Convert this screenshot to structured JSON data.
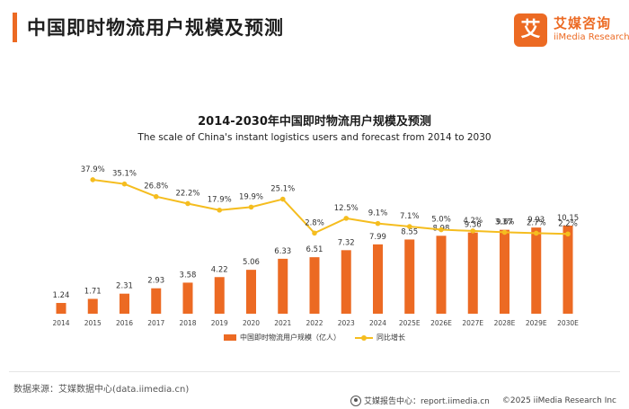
{
  "header": {
    "title": "中国即时物流用户规模及预测",
    "brand_logo_char": "艾",
    "brand_name": "艾媒咨询",
    "brand_sub": "iiMedia Research"
  },
  "chart_data": {
    "type": "bar",
    "title": "2014-2030年中国即时物流用户规模及预测",
    "subtitle": "The scale of China's instant logistics users and forecast from 2014 to 2030",
    "categories": [
      "2014",
      "2015",
      "2016",
      "2017",
      "2018",
      "2019",
      "2020",
      "2021",
      "2022",
      "2023",
      "2024",
      "2025E",
      "2026E",
      "2027E",
      "2028E",
      "2029E",
      "2030E"
    ],
    "series": [
      {
        "name": "中国即时物流用户规模（亿人）",
        "type": "bar",
        "color": "#ec6a23",
        "values": [
          1.24,
          1.71,
          2.31,
          2.93,
          3.58,
          4.22,
          5.06,
          6.33,
          6.51,
          7.32,
          7.99,
          8.55,
          8.98,
          9.36,
          9.67,
          9.93,
          10.15
        ],
        "labels": [
          "1.24",
          "1.71",
          "2.31",
          "2.93",
          "3.58",
          "4.22",
          "5.06",
          "6.33",
          "6.51",
          "7.32",
          "7.99",
          "8.55",
          "8.98",
          "9.36",
          "9.67",
          "9.93",
          "10.15"
        ]
      },
      {
        "name": "同比增长",
        "type": "line",
        "color": "#f5bd1f",
        "values": [
          null,
          37.9,
          35.1,
          26.8,
          22.2,
          17.9,
          19.9,
          25.1,
          2.8,
          12.5,
          9.1,
          7.1,
          5.0,
          4.2,
          3.3,
          2.7,
          2.2
        ],
        "labels": [
          null,
          "37.9%",
          "35.1%",
          "26.8%",
          "22.2%",
          "17.9%",
          "19.9%",
          "25.1%",
          "2.8%",
          "12.5%",
          "9.1%",
          "7.1%",
          "5.0%",
          "4.2%",
          "3.3%",
          "2.7%",
          "2.2%"
        ]
      }
    ],
    "legend_position": "bottom",
    "grid": false
  },
  "footer": {
    "source": "数据来源：艾媒数据中心(data.iimedia.cn)",
    "report_center": "艾媒报告中心：report.iimedia.cn",
    "copyright": "©2025  iiMedia Research  Inc"
  }
}
